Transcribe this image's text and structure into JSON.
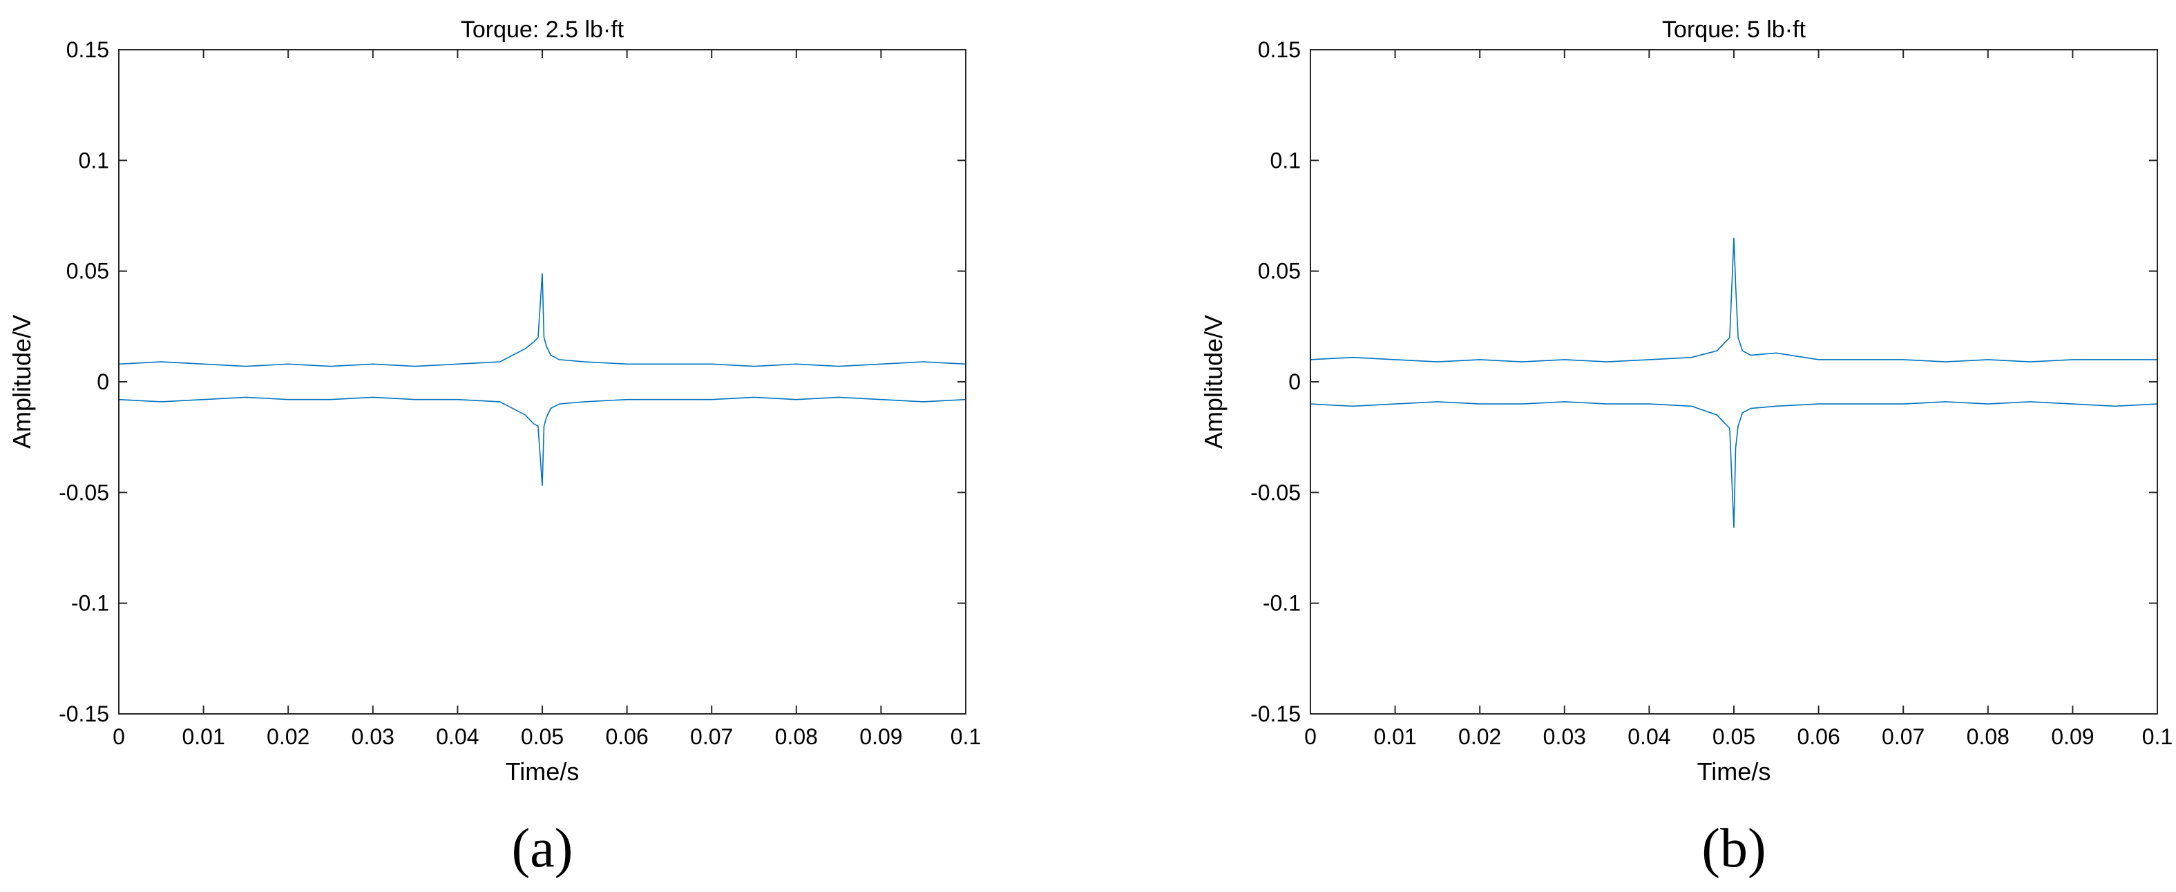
{
  "chart_data": [
    {
      "type": "line",
      "panel_label": "(a)",
      "title": "Torque: 2.5 lb·ft",
      "xlabel": "Time/s",
      "ylabel": "Amplitude/V",
      "xlim": [
        0,
        0.1
      ],
      "ylim": [
        -0.15,
        0.15
      ],
      "x_ticks": [
        0,
        0.01,
        0.02,
        0.03,
        0.04,
        0.05,
        0.06,
        0.07,
        0.08,
        0.09,
        0.1
      ],
      "x_tick_labels": [
        "0",
        "0.01",
        "0.02",
        "0.03",
        "0.04",
        "0.05",
        "0.06",
        "0.07",
        "0.08",
        "0.09",
        "0.1"
      ],
      "y_ticks": [
        -0.15,
        -0.1,
        -0.05,
        0,
        0.05,
        0.1,
        0.15
      ],
      "y_tick_labels": [
        "-0.15",
        "-0.1",
        "-0.05",
        "0",
        "0.05",
        "0.1",
        "0.15"
      ],
      "grid": false,
      "color": "#0072BD",
      "series": [
        {
          "x": [
            0,
            0.005,
            0.01,
            0.015,
            0.02,
            0.025,
            0.03,
            0.035,
            0.04,
            0.045,
            0.048,
            0.049,
            0.0495,
            0.05,
            0.0502,
            0.0505,
            0.051,
            0.052,
            0.055,
            0.06,
            0.065,
            0.07,
            0.075,
            0.08,
            0.085,
            0.09,
            0.095,
            0.1
          ],
          "y_upper": [
            0.008,
            0.009,
            0.008,
            0.007,
            0.008,
            0.007,
            0.008,
            0.007,
            0.008,
            0.009,
            0.015,
            0.018,
            0.02,
            0.049,
            0.02,
            0.016,
            0.012,
            0.01,
            0.009,
            0.008,
            0.008,
            0.008,
            0.007,
            0.008,
            0.007,
            0.008,
            0.009,
            0.008
          ],
          "y_lower": [
            -0.008,
            -0.009,
            -0.008,
            -0.007,
            -0.008,
            -0.008,
            -0.007,
            -0.008,
            -0.008,
            -0.009,
            -0.015,
            -0.019,
            -0.02,
            -0.047,
            -0.02,
            -0.016,
            -0.012,
            -0.01,
            -0.009,
            -0.008,
            -0.008,
            -0.008,
            -0.007,
            -0.008,
            -0.007,
            -0.008,
            -0.009,
            -0.008
          ]
        }
      ]
    },
    {
      "type": "line",
      "panel_label": "(b)",
      "title": "Torque: 5 lb·ft",
      "xlabel": "Time/s",
      "ylabel": "Amplitude/V",
      "xlim": [
        0,
        0.1
      ],
      "ylim": [
        -0.15,
        0.15
      ],
      "x_ticks": [
        0,
        0.01,
        0.02,
        0.03,
        0.04,
        0.05,
        0.06,
        0.07,
        0.08,
        0.09,
        0.1
      ],
      "x_tick_labels": [
        "0",
        "0.01",
        "0.02",
        "0.03",
        "0.04",
        "0.05",
        "0.06",
        "0.07",
        "0.08",
        "0.09",
        "0.1"
      ],
      "y_ticks": [
        -0.15,
        -0.1,
        -0.05,
        0,
        0.05,
        0.1,
        0.15
      ],
      "y_tick_labels": [
        "-0.15",
        "-0.1",
        "-0.05",
        "0",
        "0.05",
        "0.1",
        "0.15"
      ],
      "grid": false,
      "color": "#0072BD",
      "series": [
        {
          "x": [
            0,
            0.005,
            0.01,
            0.015,
            0.02,
            0.025,
            0.03,
            0.035,
            0.04,
            0.045,
            0.048,
            0.049,
            0.0495,
            0.05,
            0.0502,
            0.0505,
            0.051,
            0.052,
            0.055,
            0.06,
            0.065,
            0.07,
            0.075,
            0.08,
            0.085,
            0.09,
            0.095,
            0.1
          ],
          "y_upper": [
            0.01,
            0.011,
            0.01,
            0.009,
            0.01,
            0.009,
            0.01,
            0.009,
            0.01,
            0.011,
            0.014,
            0.018,
            0.02,
            0.065,
            0.044,
            0.02,
            0.014,
            0.012,
            0.013,
            0.01,
            0.01,
            0.01,
            0.009,
            0.01,
            0.009,
            0.01,
            0.01,
            0.01
          ],
          "y_lower": [
            -0.01,
            -0.011,
            -0.01,
            -0.009,
            -0.01,
            -0.01,
            -0.009,
            -0.01,
            -0.01,
            -0.011,
            -0.015,
            -0.019,
            -0.021,
            -0.066,
            -0.03,
            -0.02,
            -0.014,
            -0.012,
            -0.011,
            -0.01,
            -0.01,
            -0.01,
            -0.009,
            -0.01,
            -0.009,
            -0.01,
            -0.011,
            -0.01
          ]
        }
      ]
    }
  ]
}
